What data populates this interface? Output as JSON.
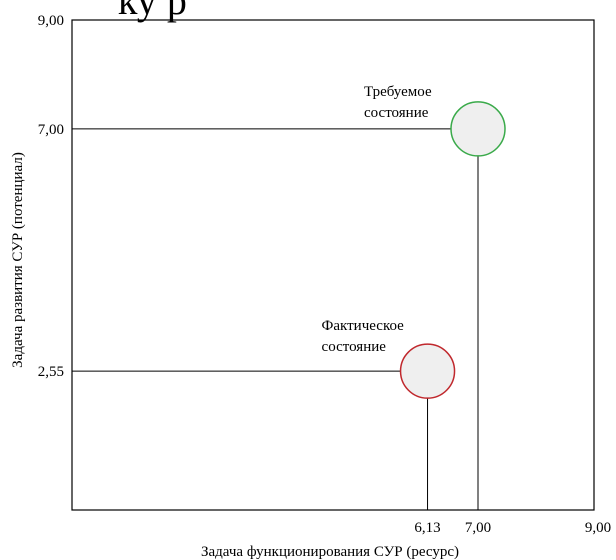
{
  "partial_title_visible": "ку       р",
  "chart_data": {
    "type": "scatter",
    "xlabel": "Задача функционирования СУР (ресурс)",
    "ylabel": "Задача развития СУР (потенциал)",
    "xlim": [
      0,
      9.0
    ],
    "ylim": [
      0,
      9.0
    ],
    "x_ticks": [
      "6,13",
      "7,00",
      "9,00"
    ],
    "y_ticks": [
      "2,55",
      "7,00",
      "9,00"
    ],
    "grid": false,
    "points": [
      {
        "label_line1": "Фактическое",
        "label_line2": "состояние",
        "x": 6.13,
        "y": 2.55,
        "edge_color": "#c0282d",
        "fill_color": "#efefef"
      },
      {
        "label_line1": "Требуемое",
        "label_line2": "состояние",
        "x": 7.0,
        "y": 7.0,
        "edge_color": "#3aaa4a",
        "fill_color": "#efefef"
      }
    ]
  }
}
